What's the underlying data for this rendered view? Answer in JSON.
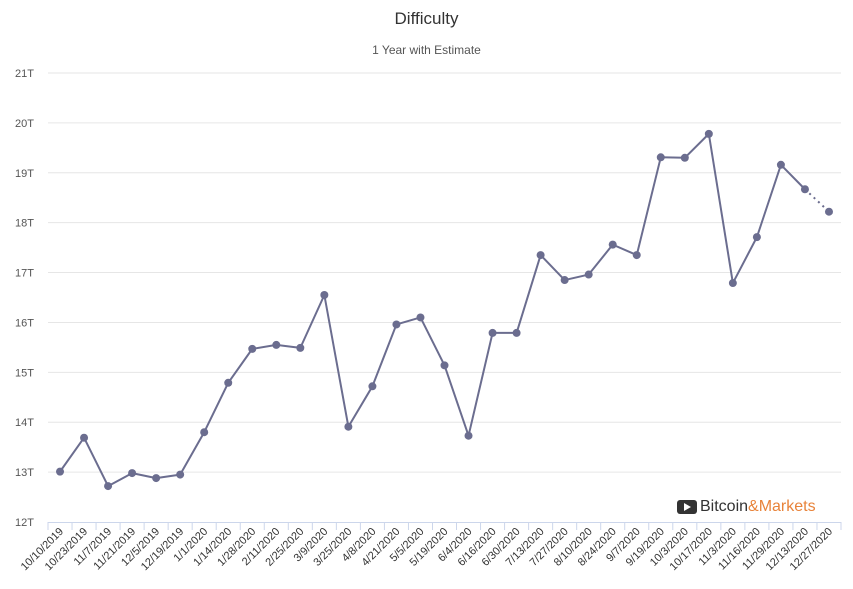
{
  "title": "Difficulty",
  "subtitle": "1 Year with Estimate",
  "brand": {
    "part1": "Bitcoin",
    "part2": "&Markets",
    "icon": "play-icon",
    "accent": "#e8833a"
  },
  "colors": {
    "line": "#6b6d8f",
    "grid": "#e6e6e6"
  },
  "chart_data": {
    "type": "line",
    "title": "Difficulty",
    "subtitle": "1 Year with Estimate",
    "xlabel": "",
    "ylabel": "",
    "ylim": [
      12,
      21
    ],
    "y_ticks": [
      "12T",
      "13T",
      "14T",
      "15T",
      "16T",
      "17T",
      "18T",
      "19T",
      "20T",
      "21T"
    ],
    "y_unit": "T",
    "grid": "horizontal",
    "categories": [
      "10/10/2019",
      "10/23/2019",
      "11/7/2019",
      "11/21/2019",
      "12/5/2019",
      "12/19/2019",
      "1/1/2020",
      "1/14/2020",
      "1/28/2020",
      "2/11/2020",
      "2/25/2020",
      "3/9/2020",
      "3/25/2020",
      "4/8/2020",
      "4/21/2020",
      "5/5/2020",
      "5/19/2020",
      "6/4/2020",
      "6/16/2020",
      "6/30/2020",
      "7/13/2020",
      "7/27/2020",
      "8/10/2020",
      "8/24/2020",
      "9/7/2020",
      "9/19/2020",
      "10/3/2020",
      "10/17/2020",
      "11/3/2020",
      "11/16/2020",
      "11/29/2020",
      "12/13/2020",
      "12/27/2020"
    ],
    "series": [
      {
        "values": [
          13.01,
          13.69,
          12.72,
          12.98,
          12.88,
          12.95,
          13.8,
          14.79,
          15.47,
          15.55,
          15.49,
          16.55,
          13.91,
          14.72,
          15.96,
          16.1,
          15.14,
          13.73,
          15.79,
          15.79,
          17.35,
          16.85,
          16.96,
          17.56,
          17.35,
          19.31,
          19.3,
          19.78,
          16.79,
          17.71,
          19.16,
          18.67,
          18.22
        ],
        "estimate_from_index": 31
      }
    ]
  }
}
